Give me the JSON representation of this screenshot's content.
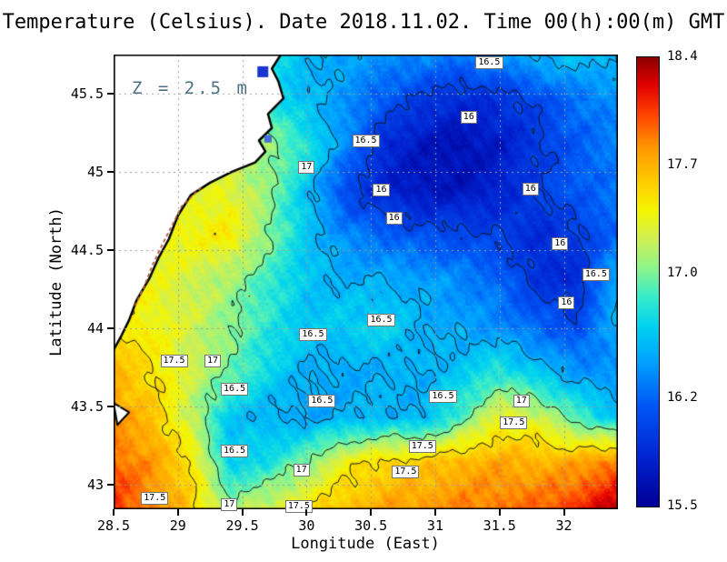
{
  "title": "Temperature (Celsius). Date 2018.11.02. Time 00(h):00(m) GMT",
  "annotation": "Z = 2.5 m",
  "axes": {
    "x": {
      "label": "Longitude (East)",
      "range": [
        28.5,
        32.42
      ],
      "ticks": [
        28.5,
        29,
        29.5,
        30,
        30.5,
        31,
        31.5,
        32
      ],
      "tick_labels": [
        "28.5",
        "29",
        "29.5",
        "30",
        "30.5",
        "31",
        "31.5",
        "32"
      ]
    },
    "y": {
      "label": "Latitude (North)",
      "range": [
        42.84,
        45.75
      ],
      "ticks": [
        43,
        43.5,
        44,
        44.5,
        45,
        45.5
      ],
      "tick_labels": [
        "43",
        "43.5",
        "44",
        "44.5",
        "45",
        "45.5"
      ]
    }
  },
  "colorbar": {
    "min": 15.5,
    "max": 18.4,
    "tick_values": [
      18.4,
      17.7,
      17.0,
      16.2,
      15.5
    ],
    "tick_labels": [
      "18.4",
      "17.7",
      "17.0",
      "16.2",
      "15.5"
    ],
    "stops": [
      [
        0.0,
        "#000096"
      ],
      [
        0.1,
        "#0020cd"
      ],
      [
        0.22,
        "#0055f5"
      ],
      [
        0.32,
        "#00a0ff"
      ],
      [
        0.4,
        "#00d2f0"
      ],
      [
        0.47,
        "#3cecc8"
      ],
      [
        0.53,
        "#8cf58c"
      ],
      [
        0.6,
        "#d2f050"
      ],
      [
        0.66,
        "#f5f500"
      ],
      [
        0.73,
        "#ffc800"
      ],
      [
        0.8,
        "#ff9600"
      ],
      [
        0.87,
        "#ff4600"
      ],
      [
        0.94,
        "#e10000"
      ],
      [
        1.0,
        "#8c0000"
      ]
    ]
  },
  "chart_data": {
    "type": "heatmap",
    "title": "Temperature (Celsius). Date 2018.11.02. Time 00(h):00(m) GMT",
    "units": "Celsius",
    "depth_label": "Z = 2.5 m",
    "xlabel": "Longitude (East)",
    "ylabel": "Latitude (North)",
    "x": [
      28.5,
      28.8,
      29.1,
      29.4,
      29.7,
      30.0,
      30.3,
      30.6,
      30.9,
      31.2,
      31.5,
      31.8,
      32.1,
      32.4
    ],
    "y": [
      45.75,
      45.46,
      45.17,
      44.88,
      44.59,
      44.3,
      44.01,
      43.72,
      43.43,
      43.14,
      42.85
    ],
    "values": [
      [
        16.9,
        16.9,
        16.9,
        16.8,
        16.7,
        16.55,
        16.45,
        16.4,
        16.35,
        16.3,
        16.4,
        16.55,
        16.6,
        16.55
      ],
      [
        17.0,
        17.0,
        17.0,
        16.9,
        16.75,
        16.55,
        16.4,
        16.15,
        15.95,
        15.85,
        15.9,
        16.05,
        16.25,
        16.35
      ],
      [
        17.1,
        17.1,
        17.1,
        17.05,
        17.1,
        16.8,
        16.35,
        15.85,
        15.7,
        15.65,
        15.75,
        15.95,
        16.15,
        16.3
      ],
      [
        17.3,
        17.3,
        17.3,
        17.35,
        17.05,
        16.6,
        16.05,
        15.8,
        15.7,
        15.7,
        15.8,
        16.0,
        16.15,
        16.25
      ],
      [
        17.5,
        17.45,
        17.4,
        17.45,
        17.05,
        16.6,
        16.35,
        16.2,
        16.1,
        16.05,
        16.0,
        15.85,
        15.95,
        16.2
      ],
      [
        17.45,
        17.35,
        17.25,
        17.1,
        16.85,
        16.6,
        16.5,
        16.5,
        16.45,
        16.35,
        16.2,
        15.9,
        15.85,
        16.5
      ],
      [
        17.5,
        17.4,
        17.25,
        17.05,
        16.8,
        16.6,
        16.65,
        16.7,
        16.5,
        16.45,
        16.35,
        16.2,
        16.05,
        16.5
      ],
      [
        17.7,
        17.5,
        17.25,
        17.0,
        16.7,
        16.5,
        16.45,
        16.5,
        16.5,
        16.6,
        16.8,
        16.6,
        16.4,
        16.35
      ],
      [
        17.8,
        17.65,
        17.2,
        16.6,
        16.5,
        16.45,
        16.5,
        16.55,
        16.5,
        16.9,
        17.35,
        17.25,
        16.9,
        16.6
      ],
      [
        17.95,
        17.8,
        17.5,
        16.65,
        16.75,
        17.0,
        17.4,
        17.55,
        17.6,
        17.7,
        17.75,
        17.7,
        17.75,
        17.9
      ],
      [
        18.1,
        17.85,
        17.6,
        17.1,
        17.25,
        17.5,
        17.65,
        17.75,
        17.8,
        17.85,
        17.9,
        17.95,
        18.1,
        18.3
      ]
    ],
    "contour_levels": [
      16,
      16.5,
      17,
      17.5
    ],
    "contour_labels": [
      {
        "lon": 31.42,
        "lat": 45.7,
        "text": "16.5"
      },
      {
        "lon": 31.26,
        "lat": 45.35,
        "text": "16"
      },
      {
        "lon": 30.46,
        "lat": 45.2,
        "text": "16.5"
      },
      {
        "lon": 30.0,
        "lat": 45.03,
        "text": "17"
      },
      {
        "lon": 30.58,
        "lat": 44.88,
        "text": "16"
      },
      {
        "lon": 31.74,
        "lat": 44.89,
        "text": "16"
      },
      {
        "lon": 30.68,
        "lat": 44.7,
        "text": "16"
      },
      {
        "lon": 31.97,
        "lat": 44.54,
        "text": "16"
      },
      {
        "lon": 32.25,
        "lat": 44.34,
        "text": "16.5"
      },
      {
        "lon": 32.02,
        "lat": 44.16,
        "text": "16"
      },
      {
        "lon": 30.58,
        "lat": 44.05,
        "text": "16.5"
      },
      {
        "lon": 30.05,
        "lat": 43.96,
        "text": "16.5"
      },
      {
        "lon": 28.97,
        "lat": 43.79,
        "text": "17.5"
      },
      {
        "lon": 29.27,
        "lat": 43.79,
        "text": "17"
      },
      {
        "lon": 29.44,
        "lat": 43.61,
        "text": "16.5"
      },
      {
        "lon": 30.12,
        "lat": 43.53,
        "text": "16.5"
      },
      {
        "lon": 31.06,
        "lat": 43.56,
        "text": "16.5"
      },
      {
        "lon": 31.67,
        "lat": 43.53,
        "text": "17"
      },
      {
        "lon": 31.61,
        "lat": 43.39,
        "text": "17.5"
      },
      {
        "lon": 29.44,
        "lat": 43.21,
        "text": "16.5"
      },
      {
        "lon": 29.96,
        "lat": 43.09,
        "text": "17"
      },
      {
        "lon": 30.9,
        "lat": 43.24,
        "text": "17.5"
      },
      {
        "lon": 30.77,
        "lat": 43.08,
        "text": "17.5"
      },
      {
        "lon": 28.82,
        "lat": 42.91,
        "text": "17.5"
      },
      {
        "lon": 29.4,
        "lat": 42.87,
        "text": "17"
      },
      {
        "lon": 29.94,
        "lat": 42.86,
        "text": "17.5"
      }
    ],
    "coastline": [
      [
        29.8,
        45.75
      ],
      [
        29.73,
        45.66
      ],
      [
        29.78,
        45.58
      ],
      [
        29.82,
        45.47
      ],
      [
        29.7,
        45.37
      ],
      [
        29.73,
        45.28
      ],
      [
        29.63,
        45.2
      ],
      [
        29.68,
        45.13
      ],
      [
        29.6,
        45.06
      ],
      [
        29.42,
        45.0
      ],
      [
        29.25,
        44.93
      ],
      [
        29.1,
        44.85
      ],
      [
        29.0,
        44.72
      ],
      [
        28.93,
        44.57
      ],
      [
        28.85,
        44.45
      ],
      [
        28.78,
        44.32
      ],
      [
        28.68,
        44.18
      ],
      [
        28.62,
        44.05
      ],
      [
        28.56,
        43.95
      ],
      [
        28.5,
        43.86
      ]
    ],
    "islet": [
      [
        28.5,
        43.52
      ],
      [
        28.62,
        43.46
      ],
      [
        28.53,
        43.38
      ]
    ],
    "river_cells": [
      {
        "lon": 29.66,
        "lat": 45.64,
        "size": 12,
        "color": "#1a35cf"
      },
      {
        "lon": 29.7,
        "lat": 45.21,
        "size": 8,
        "color": "#4a6ae0"
      }
    ],
    "coast_accent": {
      "color": "#b85c38",
      "points": [
        [
          29.18,
          44.9
        ],
        [
          29.03,
          44.78
        ],
        [
          28.95,
          44.65
        ],
        [
          28.87,
          44.52
        ],
        [
          28.8,
          44.4
        ],
        [
          28.74,
          44.27
        ],
        [
          28.66,
          44.13
        ]
      ]
    }
  }
}
